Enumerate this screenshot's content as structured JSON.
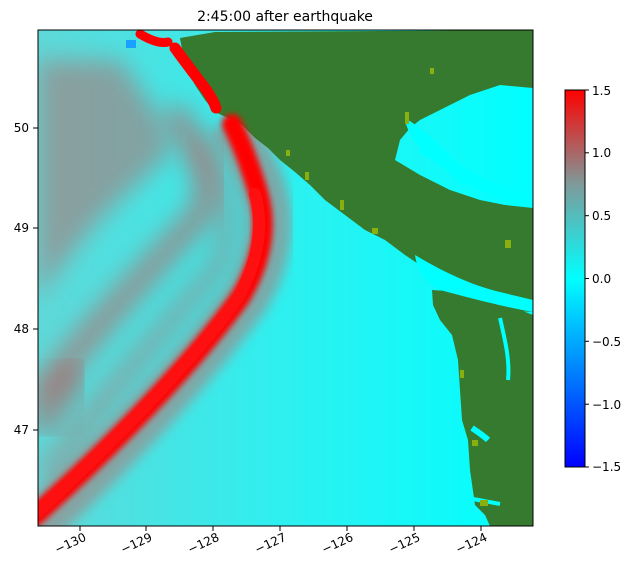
{
  "title": "2:45:00 after earthquake",
  "chart_data": {
    "type": "heatmap",
    "title": "2:45:00 after earthquake",
    "xlabel": "",
    "ylabel": "",
    "xlim": [
      -130.6,
      -123.2
    ],
    "ylim": [
      46.0,
      51.0
    ],
    "x_ticks": [
      -130,
      -129,
      -128,
      -127,
      -126,
      -125,
      -124
    ],
    "x_tick_labels": [
      "−130",
      "−129",
      "−128",
      "−127",
      "−126",
      "−125",
      "−124"
    ],
    "y_ticks": [
      47,
      48,
      49,
      50
    ],
    "y_tick_labels": [
      "47",
      "48",
      "49",
      "50"
    ],
    "colorbar": {
      "min": -1.5,
      "max": 1.5,
      "ticks": [
        -1.5,
        -1.0,
        -0.5,
        0.0,
        0.5,
        1.0,
        1.5
      ],
      "tick_labels": [
        "−1.5",
        "−1.0",
        "−0.5",
        "0.0",
        "0.5",
        "1.0",
        "1.5"
      ],
      "colors": [
        "#0000ff",
        "#00ffff",
        "#ff0000"
      ]
    },
    "land_color": "#357a2e",
    "ocean_color": "#00ffff",
    "wave_color": "#ff0000",
    "leading_wave_front": [
      {
        "lon": -130.6,
        "lat": 46.0
      },
      {
        "lon": -129.3,
        "lat": 46.9
      },
      {
        "lon": -128.2,
        "lat": 47.8
      },
      {
        "lon": -127.45,
        "lat": 48.5
      },
      {
        "lon": -127.05,
        "lat": 49.0
      },
      {
        "lon": -127.25,
        "lat": 49.4
      },
      {
        "lon": -127.7,
        "lat": 50.05
      }
    ],
    "north_wave_front": [
      {
        "lon": -128.5,
        "lat": 50.8
      },
      {
        "lon": -128.1,
        "lat": 50.25
      }
    ]
  }
}
